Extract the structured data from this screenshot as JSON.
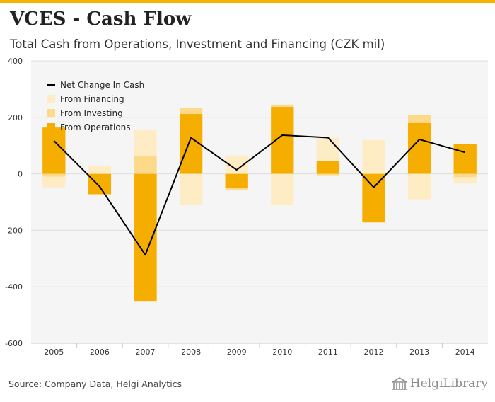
{
  "header": {
    "title": "VCES - Cash Flow",
    "subtitle": "Total Cash from Operations, Investment and Financing (CZK mil)"
  },
  "footer": {
    "source": "Source: Company Data, Helgi Analytics",
    "brand": "HelgiLibrary"
  },
  "colors": {
    "accent": "#f5b400",
    "operations": "#f5ad00",
    "investing": "#fdd98a",
    "financing": "#feecc4",
    "net_line": "#000000",
    "plot_bg": "#f5f5f5"
  },
  "chart_data": {
    "type": "bar",
    "stacked": true,
    "categories": [
      "2005",
      "2006",
      "2007",
      "2008",
      "2009",
      "2010",
      "2011",
      "2012",
      "2013",
      "2014"
    ],
    "series": [
      {
        "name": "From Operations",
        "type": "bar",
        "values": [
          164,
          -72,
          -450,
          212,
          -50,
          237,
          45,
          -172,
          180,
          105
        ]
      },
      {
        "name": "From Investing",
        "type": "bar",
        "values": [
          -10,
          -3,
          62,
          20,
          -6,
          8,
          -5,
          0,
          28,
          -12
        ]
      },
      {
        "name": "From Financing",
        "type": "bar",
        "values": [
          -38,
          28,
          95,
          -110,
          65,
          -112,
          83,
          120,
          -90,
          -22
        ]
      },
      {
        "name": "Net Change In Cash",
        "type": "line",
        "values": [
          117,
          -45,
          -287,
          128,
          14,
          137,
          128,
          -48,
          122,
          76
        ]
      }
    ],
    "legend": [
      "Net Change In Cash",
      "From Financing",
      "From Investing",
      "From Operations"
    ],
    "legend_position": "top-left",
    "y_ticks": [
      400,
      200,
      0,
      -200,
      -400,
      -600
    ],
    "ylim": [
      -600,
      400
    ],
    "xlabel": "",
    "ylabel": "",
    "grid": true
  }
}
